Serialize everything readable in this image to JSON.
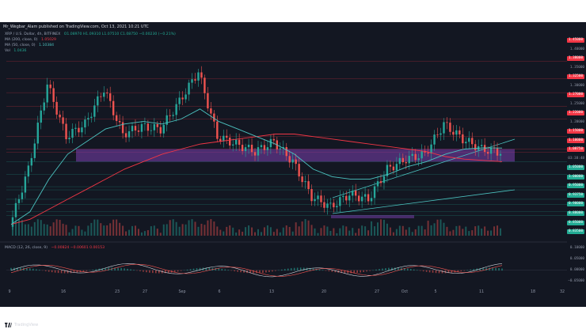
{
  "header": {
    "published": "Mr_Wegbar_Alam published on TradingView.com, Oct 13, 2021 10:21 UTC"
  },
  "legend": {
    "symbol": "XRP / U.S. Dollar, 4h, BITFINEX",
    "ohlc": "O1.08970  H1.09310  L1.07510  C1.08750  −0.00230 (−0.21%)",
    "ma200": "MA (200, close, 0)",
    "ma200_value": "1.05029",
    "ma50": "MA (50, close, 0)",
    "ma50_value": "1.10384",
    "vol": "Vol",
    "vol_value": "1.0436"
  },
  "macd": {
    "label": "MACD (12, 26, close, 9)",
    "values": "−0.00824   −0.00601   0.00153"
  },
  "price_axis": [
    {
      "label": "1.45000",
      "color": "#f23645"
    },
    {
      "label": "1.40000",
      "color": null
    },
    {
      "label": "1.38000",
      "color": "#f23645"
    },
    {
      "label": "1.35000",
      "color": null
    },
    {
      "label": "1.32500",
      "color": "#f23645"
    },
    {
      "label": "1.30000",
      "color": null
    },
    {
      "label": "1.27000",
      "color": "#f23645"
    },
    {
      "label": "1.25000",
      "color": null
    },
    {
      "label": "1.22000",
      "color": "#f23645"
    },
    {
      "label": "1.20000",
      "color": null
    },
    {
      "label": "1.15000",
      "color": "#f23645"
    },
    {
      "label": "1.10000",
      "color": "#f23645"
    },
    {
      "label": "1.08750",
      "color": "#f23645"
    },
    {
      "label": "03:38:48",
      "color": null
    },
    {
      "label": "1.05000",
      "color": "#22ab94"
    },
    {
      "label": "1.00000",
      "color": "#22ab94"
    },
    {
      "label": "0.95000",
      "color": "#22ab94"
    },
    {
      "label": "0.93750",
      "color": "#22ab94"
    },
    {
      "label": "0.90000",
      "color": "#22ab94"
    },
    {
      "label": "0.88000",
      "color": "#22ab94"
    },
    {
      "label": "0.85000",
      "color": "#22ab94"
    },
    {
      "label": "0.83500",
      "color": "#22ab94"
    }
  ],
  "macd_axis": [
    "0.10000",
    "0.05000",
    "0.00000",
    "−0.05000"
  ],
  "time_axis": [
    "9",
    "16",
    "23",
    "27",
    "Sep",
    "6",
    "13",
    "20",
    "27",
    "Oct",
    "5",
    "11",
    "18",
    "32"
  ],
  "footer": {
    "brand": "TradingView"
  },
  "chart_data": {
    "type": "candlestick",
    "title": "XRP / U.S. Dollar, 4h, BITFINEX",
    "xlabel": "",
    "ylabel": "",
    "ylim": [
      0.78,
      1.48
    ],
    "price_series": {
      "x": [
        "Aug 9",
        "Aug 12",
        "Aug 14",
        "Aug 16",
        "Aug 18",
        "Aug 21",
        "Aug 24",
        "Aug 27",
        "Aug 30",
        "Sep 2",
        "Sep 5",
        "Sep 6",
        "Sep 8",
        "Sep 10",
        "Sep 13",
        "Sep 16",
        "Sep 20",
        "Sep 22",
        "Sep 25",
        "Sep 28",
        "Oct 1",
        "Oct 3",
        "Oct 6",
        "Oct 9",
        "Oct 11",
        "Oct 12",
        "Oct 13"
      ],
      "close": [
        0.79,
        1.02,
        1.36,
        1.15,
        1.2,
        1.34,
        1.16,
        1.19,
        1.18,
        1.29,
        1.41,
        1.15,
        1.12,
        1.09,
        1.13,
        1.05,
        0.91,
        0.87,
        0.92,
        0.9,
        1.02,
        1.06,
        1.08,
        1.2,
        1.14,
        1.1,
        1.0875
      ]
    },
    "ma50": [
      0.8,
      0.85,
      0.98,
      1.08,
      1.13,
      1.18,
      1.2,
      1.21,
      1.2,
      1.22,
      1.26,
      1.21,
      1.18,
      1.15,
      1.12,
      1.08,
      1.02,
      0.99,
      0.98,
      0.98,
      1.0,
      1.03,
      1.05,
      1.08,
      1.1,
      1.105,
      1.104
    ],
    "ma200": [
      0.8,
      0.82,
      0.86,
      0.9,
      0.94,
      0.98,
      1.02,
      1.05,
      1.08,
      1.1,
      1.12,
      1.13,
      1.14,
      1.15,
      1.16,
      1.16,
      1.15,
      1.14,
      1.13,
      1.12,
      1.11,
      1.1,
      1.09,
      1.07,
      1.06,
      1.055,
      1.05
    ],
    "zones": [
      {
        "name": "purple support/resistance box",
        "from": 1.05,
        "to": 1.1
      }
    ],
    "macd_ylim": [
      -0.07,
      0.12
    ]
  }
}
